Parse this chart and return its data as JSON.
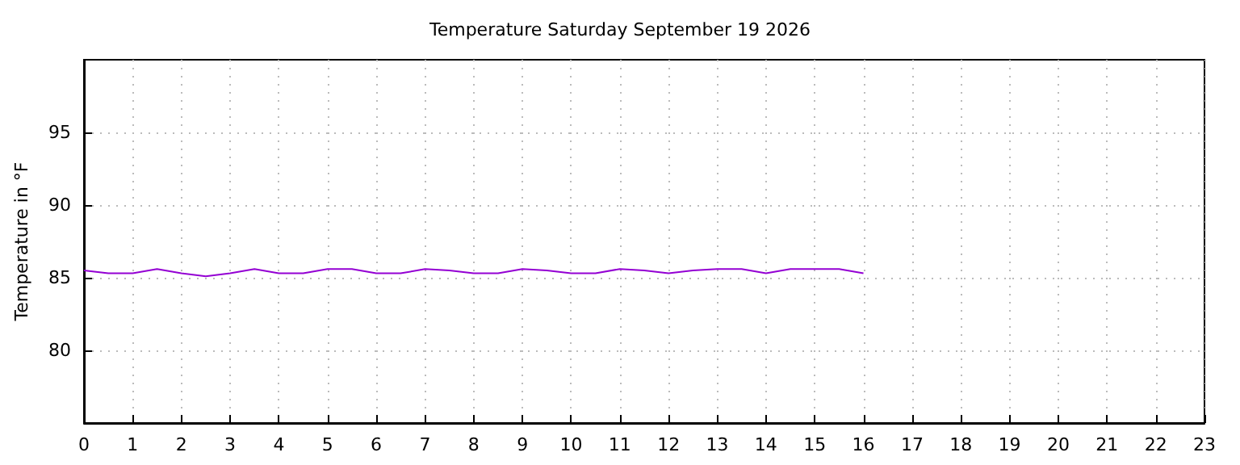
{
  "chart_data": {
    "type": "line",
    "title": "Temperature Saturday September 19 2026",
    "ylabel": "Temperature in °F",
    "x": [
      0,
      0.5,
      1,
      1.5,
      2,
      2.5,
      3,
      3.5,
      4,
      4.5,
      5,
      5.5,
      6,
      6.5,
      7,
      7.5,
      8,
      8.5,
      9,
      9.5,
      10,
      10.5,
      11,
      11.5,
      12,
      12.5,
      13,
      13.5,
      14,
      14.5,
      15,
      15.5,
      16
    ],
    "series": [
      {
        "color": "#9400d3",
        "values": [
          85.5,
          85.3,
          85.3,
          85.6,
          85.3,
          85.1,
          85.3,
          85.6,
          85.3,
          85.3,
          85.6,
          85.6,
          85.3,
          85.3,
          85.6,
          85.5,
          85.3,
          85.3,
          85.6,
          85.5,
          85.3,
          85.3,
          85.6,
          85.5,
          85.3,
          85.5,
          85.6,
          85.6,
          85.3,
          85.6,
          85.6,
          85.6,
          85.3
        ]
      }
    ],
    "xlim": [
      0,
      23
    ],
    "xticks": [
      0,
      1,
      2,
      3,
      4,
      5,
      6,
      7,
      8,
      9,
      10,
      11,
      12,
      13,
      14,
      15,
      16,
      17,
      18,
      19,
      20,
      21,
      22,
      23
    ],
    "ylim": [
      75,
      100
    ],
    "yticks": [
      80,
      85,
      90,
      95
    ],
    "grid": true,
    "marker": "none",
    "line_style": "solid"
  }
}
